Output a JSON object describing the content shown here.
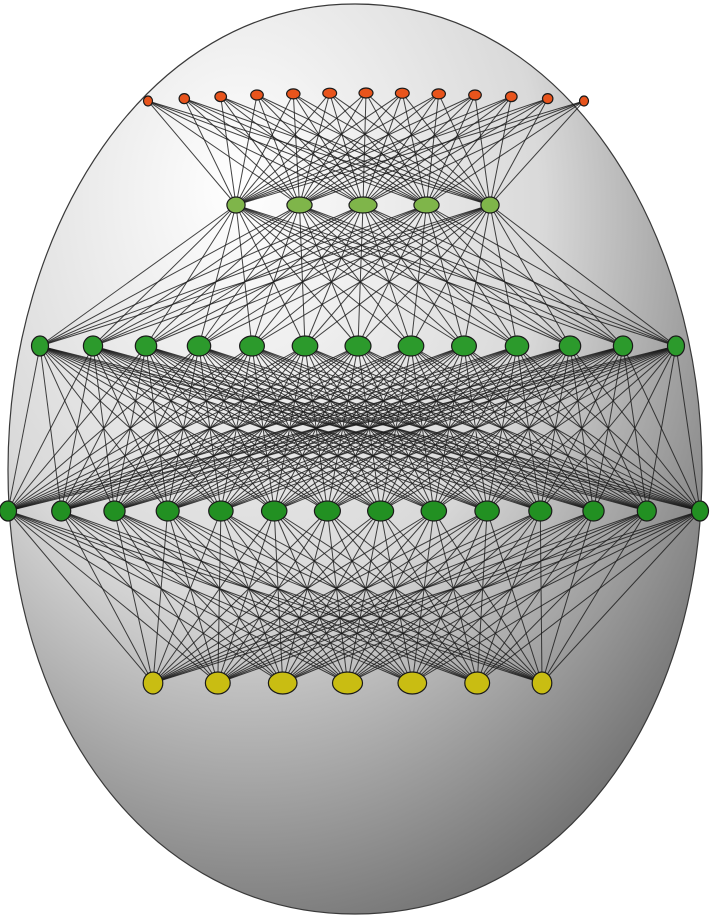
{
  "diagram": {
    "type": "layered-network-graph-on-egg",
    "background_color": "#ffffff",
    "egg": {
      "highlight_color": "#ffffff",
      "mid_color": "#d9d9d9",
      "shadow_color": "#4a4a4a",
      "outline_color": "#3a3a3a"
    },
    "edge_color": "#1a1a1a",
    "node_outline_color": "#1a1a1a",
    "connections": [
      {
        "from": "top",
        "to": "upper-middle"
      },
      {
        "from": "upper-middle",
        "to": "band-a"
      },
      {
        "from": "band-a",
        "to": "band-b"
      },
      {
        "from": "band-b",
        "to": "bottom"
      }
    ],
    "layers": [
      {
        "id": "top",
        "color": "#e8541c",
        "nodes": [
          "",
          "",
          "",
          "",
          "",
          "",
          "",
          "",
          "",
          "",
          "",
          "",
          ""
        ]
      },
      {
        "id": "upper-middle",
        "color": "#7fb54a",
        "nodes": [
          "",
          "",
          "",
          "",
          ""
        ]
      },
      {
        "id": "band-a",
        "color": "#2c9a2c",
        "nodes": [
          "",
          "",
          "",
          "",
          "",
          "",
          "",
          "",
          "",
          "",
          "",
          "",
          ""
        ]
      },
      {
        "id": "band-b",
        "color": "#229022",
        "nodes": [
          "",
          "",
          "",
          "",
          "",
          "",
          "",
          "",
          "",
          "",
          "",
          "",
          "",
          ""
        ]
      },
      {
        "id": "bottom",
        "color": "#c9bd12",
        "nodes": [
          "",
          "",
          "",
          "",
          "",
          "",
          ""
        ]
      }
    ]
  }
}
